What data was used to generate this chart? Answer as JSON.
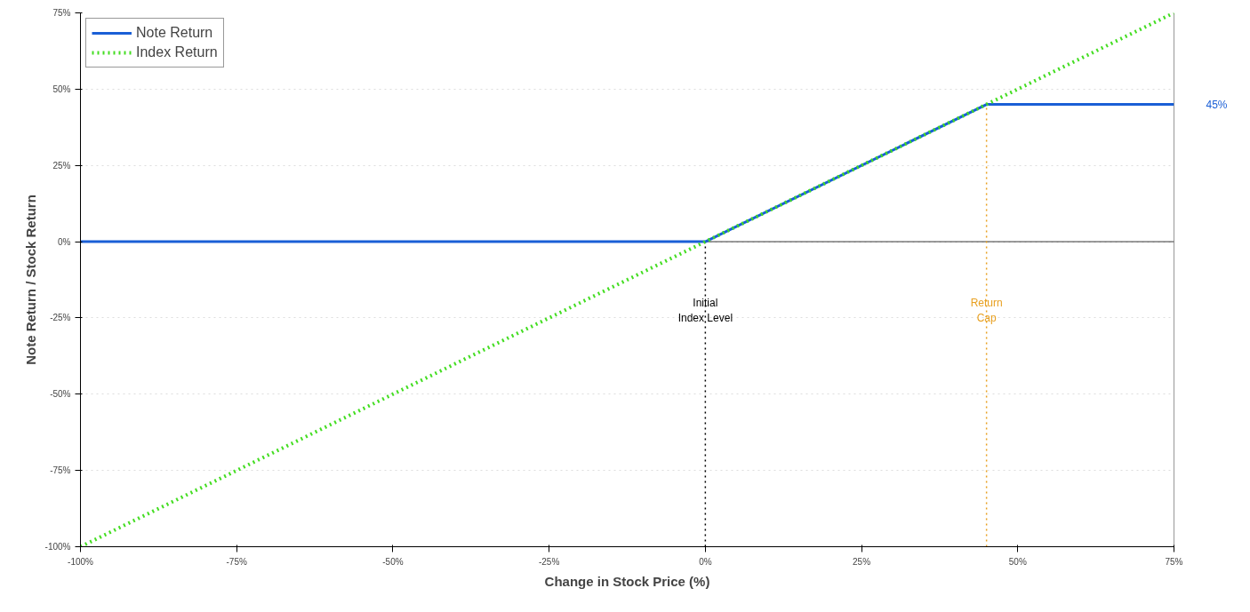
{
  "chart_data": {
    "type": "line",
    "xlabel": "Change in Stock Price (%)",
    "ylabel": "Note Return / Stock Return",
    "xlim": [
      -100,
      75
    ],
    "ylim": [
      -100,
      75
    ],
    "xticks": [
      {
        "value": -100,
        "label": "-100%"
      },
      {
        "value": -75,
        "label": "-75%"
      },
      {
        "value": -50,
        "label": "-50%"
      },
      {
        "value": -25,
        "label": "-25%"
      },
      {
        "value": 0,
        "label": "0%"
      },
      {
        "value": 25,
        "label": "25%"
      },
      {
        "value": 50,
        "label": "50%"
      },
      {
        "value": 75,
        "label": "75%"
      }
    ],
    "yticks": [
      {
        "value": -100,
        "label": "-100%"
      },
      {
        "value": -75,
        "label": "-75%"
      },
      {
        "value": -50,
        "label": "-50%"
      },
      {
        "value": -25,
        "label": "-25%"
      },
      {
        "value": 0,
        "label": "0%"
      },
      {
        "value": 25,
        "label": "25%"
      },
      {
        "value": 50,
        "label": "50%"
      },
      {
        "value": 75,
        "label": "75%"
      }
    ],
    "grid": "y",
    "legend": "top left",
    "series": [
      {
        "name": "Note Return",
        "color": "#1a5fd6",
        "line_style": "solid",
        "x": [
          -100,
          0,
          45,
          75
        ],
        "values": [
          0,
          0,
          45,
          45
        ]
      },
      {
        "name": "Index Return",
        "color": "#44dd22",
        "line_style": "dotted",
        "x": [
          -100,
          75
        ],
        "values": [
          -100,
          75
        ]
      }
    ],
    "ref_lines": [
      {
        "axis": "y",
        "value": 0,
        "color": "#000000",
        "line_style": "solid"
      },
      {
        "axis": "x",
        "value": 0,
        "label": "Initial\nIndex Level",
        "color": "#000000",
        "line_style": "dotted"
      },
      {
        "axis": "x",
        "value": 45,
        "label": "Return\nCap",
        "color": "#e8a020",
        "line_style": "dotted"
      }
    ],
    "annotations": [
      "45%"
    ]
  }
}
